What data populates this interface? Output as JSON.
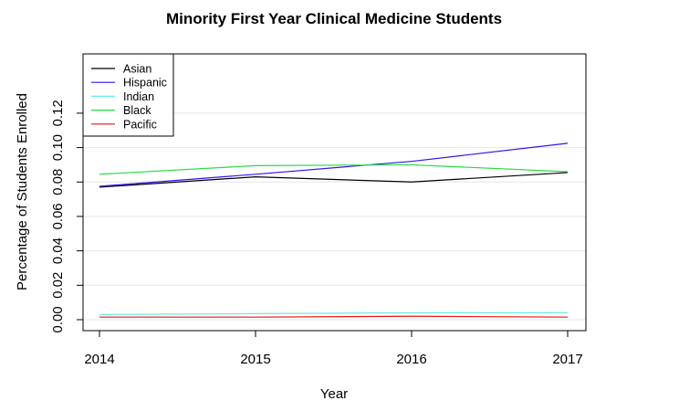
{
  "chart_data": {
    "type": "line",
    "title": "Minority First Year Clinical Medicine Students",
    "xlabel": "Year",
    "ylabel": "Percentage of Students Enrolled",
    "x": [
      2014,
      2015,
      2016,
      2017
    ],
    "x_tick_labels": [
      "2014",
      "2015",
      "2016",
      "2017"
    ],
    "y_ticks": [
      0.0,
      0.02,
      0.04,
      0.06,
      0.08,
      0.1,
      0.12
    ],
    "y_tick_labels": [
      "0.00",
      "0.02",
      "0.04",
      "0.06",
      "0.08",
      "0.10",
      "0.12"
    ],
    "xlim": [
      2014,
      2017
    ],
    "ylim": [
      0.0,
      0.13
    ],
    "grid": "horizontal",
    "legend_position": "top-left",
    "series": [
      {
        "name": "Asian",
        "color": "#000000",
        "values": [
          0.077,
          0.083,
          0.08,
          0.0855
        ]
      },
      {
        "name": "Hispanic",
        "color": "#3311ee",
        "values": [
          0.0775,
          0.0845,
          0.092,
          0.1025
        ]
      },
      {
        "name": "Indian",
        "color": "#66eedd",
        "values": [
          0.003,
          0.0035,
          0.004,
          0.004
        ]
      },
      {
        "name": "Black",
        "color": "#22dd44",
        "values": [
          0.0845,
          0.0895,
          0.09,
          0.086
        ]
      },
      {
        "name": "Pacific",
        "color": "#ee1111",
        "values": [
          0.0015,
          0.0015,
          0.002,
          0.0015
        ]
      }
    ]
  }
}
